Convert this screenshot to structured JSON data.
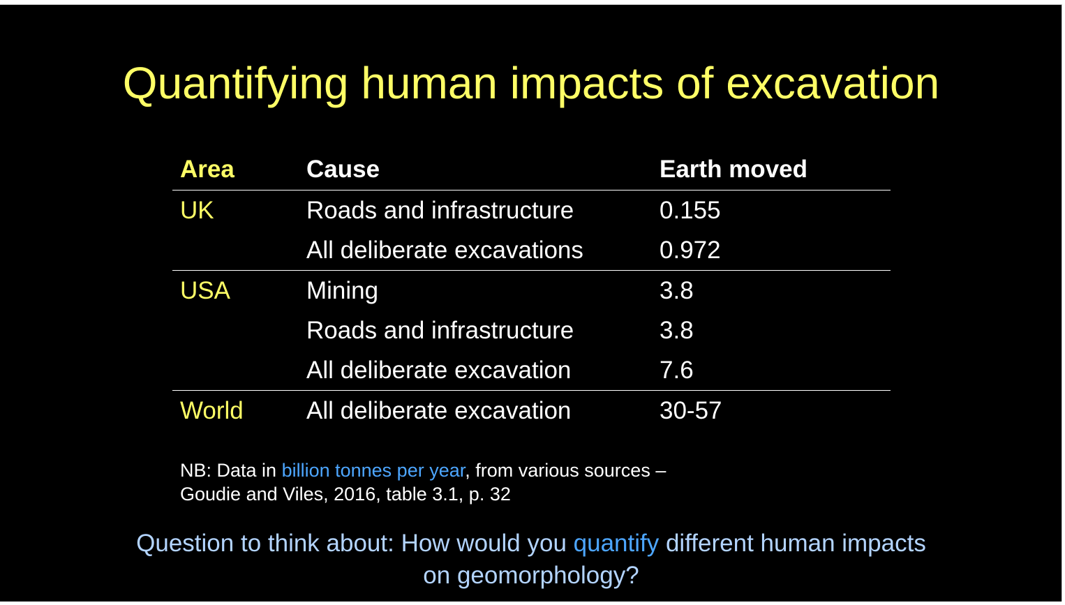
{
  "slide": {
    "title": "Quantifying human impacts of excavation",
    "table": {
      "headers": {
        "area": "Area",
        "cause": "Cause",
        "earth_moved": "Earth moved"
      },
      "rows": [
        {
          "area": "UK",
          "cause": "Roads and infrastructure",
          "earth_moved": "0.155"
        },
        {
          "area": "",
          "cause": "All deliberate excavations",
          "earth_moved": "0.972"
        },
        {
          "area": "USA",
          "cause": "Mining",
          "earth_moved": "3.8"
        },
        {
          "area": "",
          "cause": "Roads and infrastructure",
          "earth_moved": "3.8"
        },
        {
          "area": "",
          "cause": "All deliberate excavation",
          "earth_moved": "7.6"
        },
        {
          "area": "World",
          "cause": "All deliberate excavation",
          "earth_moved": "30-57"
        }
      ]
    },
    "note": {
      "prefix": "NB: Data in ",
      "highlight": "billion tonnes per year",
      "suffix": ", from various sources –",
      "line2": "Goudie and Viles, 2016, table 3.1, p. 32"
    },
    "question": {
      "prefix": "Question to think about: How would you ",
      "highlight": "quantify",
      "suffix": " different human impacts",
      "line2": "on geomorphology?"
    },
    "colors": {
      "background": "#000000",
      "title": "#ffff66",
      "area_text": "#ffff66",
      "body_text": "#ffffff",
      "highlight": "#4da6ff",
      "question_text": "#b3d4ff"
    }
  }
}
